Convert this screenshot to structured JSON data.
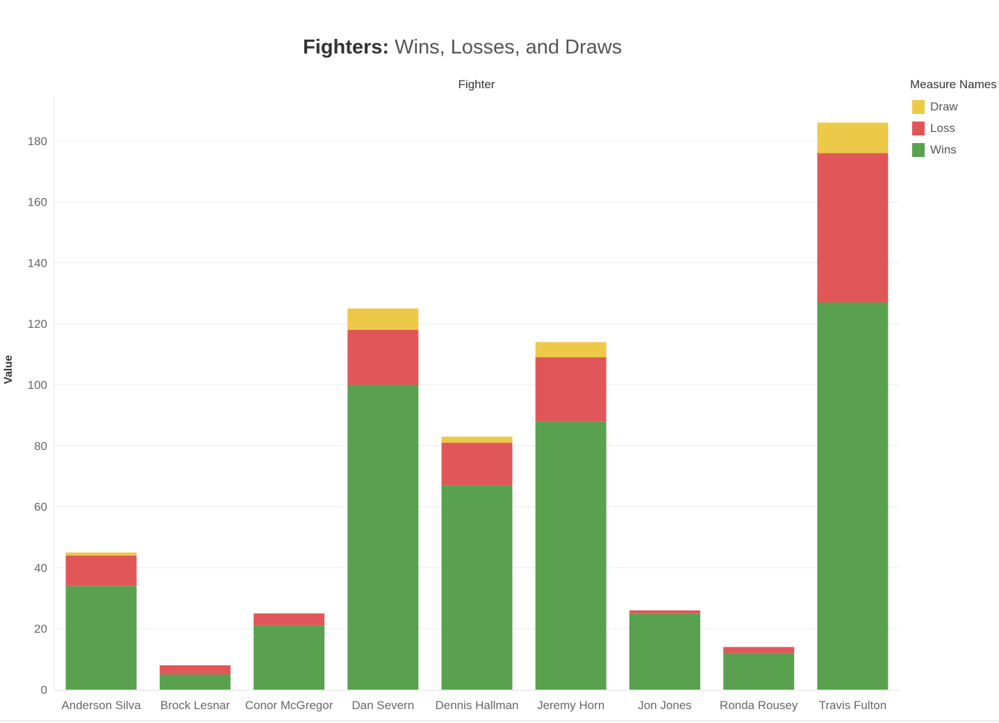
{
  "chart_data": {
    "type": "bar",
    "stacked": true,
    "title_bold": "Fighters:",
    "title_rest": "Wins, Losses, and Draws",
    "column_header": "Fighter",
    "ylabel": "Value",
    "ylim": [
      0,
      190
    ],
    "yticks": [
      0,
      20,
      40,
      60,
      80,
      100,
      120,
      140,
      160,
      180
    ],
    "grid": true,
    "legend_title": "Measure Names",
    "legend_position": "top-right",
    "categories": [
      "Anderson Silva",
      "Brock Lesnar",
      "Conor McGregor",
      "Dan Severn",
      "Dennis Hallman",
      "Jeremy Horn",
      "Jon Jones",
      "Ronda Rousey",
      "Travis Fulton"
    ],
    "series": [
      {
        "name": "Wins",
        "color": "#59a14f",
        "values": [
          34,
          5,
          21,
          100,
          67,
          88,
          25,
          12,
          127
        ]
      },
      {
        "name": "Loss",
        "color": "#e15759",
        "values": [
          10,
          3,
          4,
          18,
          14,
          21,
          1,
          2,
          49
        ]
      },
      {
        "name": "Draw",
        "color": "#edc948",
        "values": [
          1,
          0,
          0,
          7,
          2,
          5,
          0,
          0,
          10
        ]
      }
    ],
    "legend_order": [
      "Draw",
      "Loss",
      "Wins"
    ]
  }
}
